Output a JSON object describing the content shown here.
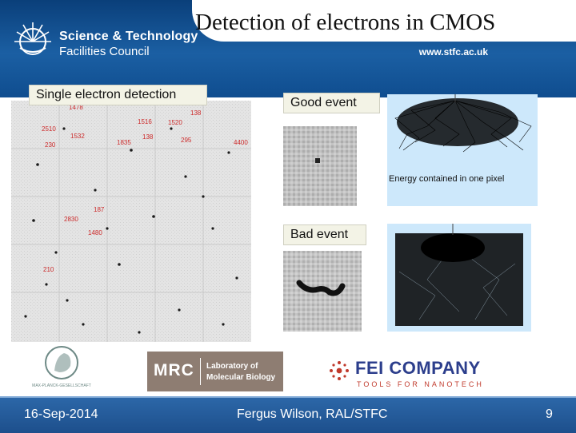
{
  "header": {
    "org_line1": "Science & Technology",
    "org_line2": "Facilities Council",
    "website": "www.stfc.ac.uk"
  },
  "slide": {
    "title": "Detection of electrons in CMOS",
    "single_label": "Single electron detection",
    "good_label": "Good event",
    "bad_label": "Bad event",
    "energy_caption": "Energy contained in one pixel"
  },
  "detector_labels": [
    "1478",
    "1516",
    "1520",
    "138",
    "2510",
    "230",
    "1532",
    "1835",
    "138",
    "295",
    "4400",
    "187",
    "2830",
    "1480",
    "210"
  ],
  "logos": {
    "mpg_text": "MAX-PLANCK-GESELLSCHAFT",
    "mrc_abbr": "MRC",
    "mrc_line1": "Laboratory of",
    "mrc_line2": "Molecular Biology",
    "fei_name": "FEI COMPANY",
    "fei_tagline": "TOOLS FOR NANOTECH"
  },
  "footer": {
    "date": "16-Sep-2014",
    "author": "Fergus Wilson, RAL/STFC",
    "page": "9"
  },
  "colors": {
    "header_blue": "#1b5fa3",
    "footer_blue": "#2c67a8",
    "label_box": "#f3f3e6",
    "sim_background": "#cde8fb",
    "detector_label_red": "#cc2a2a"
  }
}
